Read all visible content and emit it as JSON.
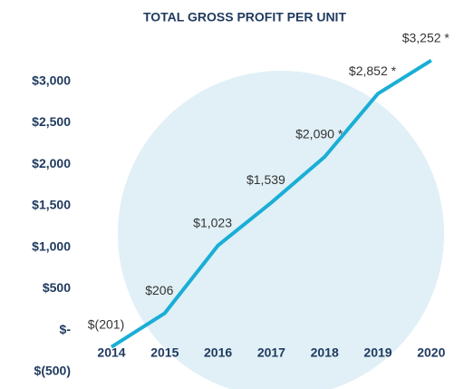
{
  "chart_data": {
    "type": "line",
    "title": "TOTAL GROSS PROFIT PER UNIT",
    "categories": [
      "2014",
      "2015",
      "2016",
      "2017",
      "2018",
      "2019",
      "2020"
    ],
    "series": [
      {
        "name": "Gross profit per unit",
        "color": "#1aaed6",
        "values": [
          -201,
          206,
          1023,
          1539,
          2090,
          2852,
          3252
        ],
        "value_labels": [
          "$(201)",
          "$206",
          "$1,023",
          "$1,539",
          "$2,090 *",
          "$2,852 *",
          "$3,252 *"
        ]
      }
    ],
    "ylim": [
      -500,
      3500
    ],
    "yticks": [
      {
        "value": -500,
        "label": "$(500)"
      },
      {
        "value": 0,
        "label": "$-"
      },
      {
        "value": 500,
        "label": "$500"
      },
      {
        "value": 1000,
        "label": "$1,000"
      },
      {
        "value": 1500,
        "label": "$1,500"
      },
      {
        "value": 2000,
        "label": "$2,000"
      },
      {
        "value": 2500,
        "label": "$2,500"
      },
      {
        "value": 3000,
        "label": "$3,000"
      }
    ],
    "grid": false
  }
}
